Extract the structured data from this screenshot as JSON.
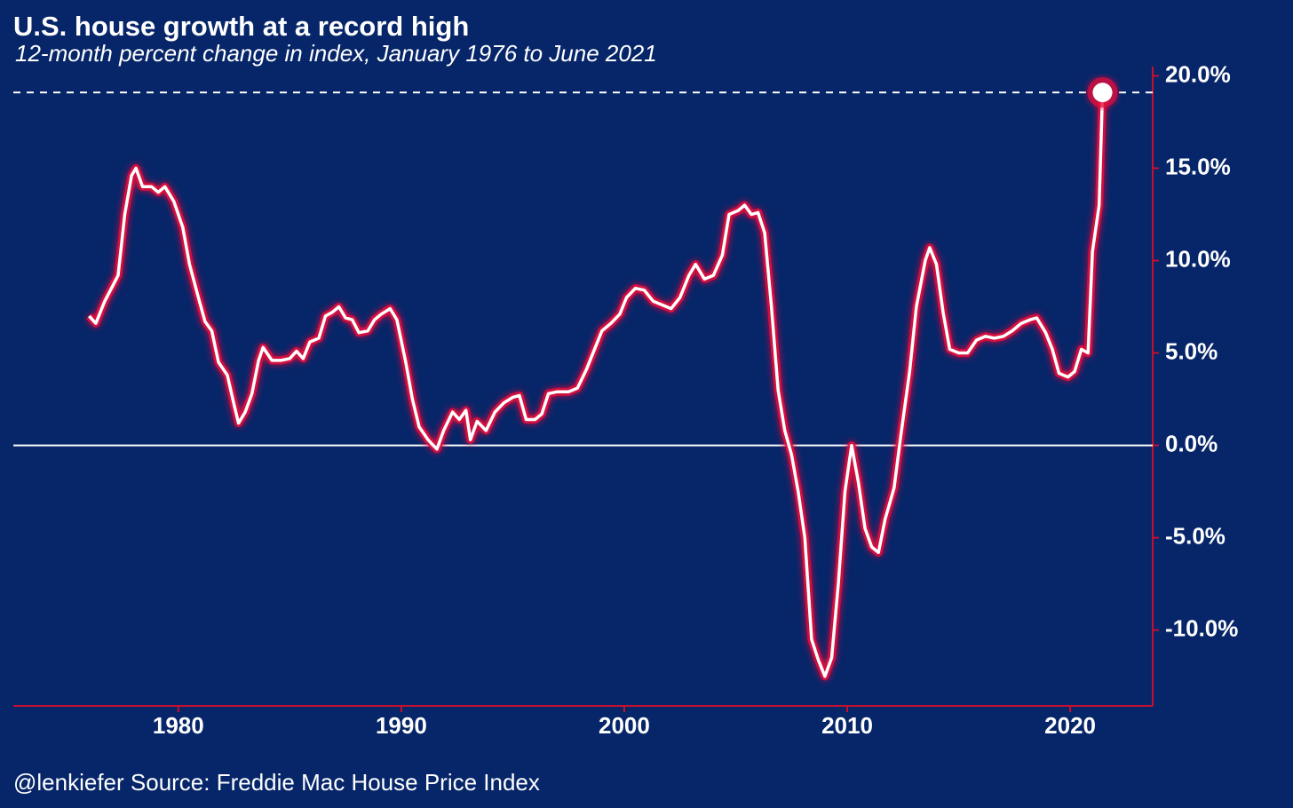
{
  "chart_data": {
    "type": "line",
    "title": "U.S. house growth at a record high",
    "subtitle": "12-month percent change in index, January 1976 to June 2021",
    "caption": "@lenkiefer Source: Freddie Mac House Price Index",
    "x": [
      1976.0,
      1976.3,
      1976.7,
      1977.0,
      1977.3,
      1977.6,
      1977.9,
      1978.1,
      1978.4,
      1978.8,
      1979.1,
      1979.4,
      1979.8,
      1980.2,
      1980.5,
      1980.9,
      1981.2,
      1981.5,
      1981.8,
      1982.2,
      1982.5,
      1982.7,
      1983.0,
      1983.3,
      1983.6,
      1983.8,
      1984.2,
      1984.6,
      1985.0,
      1985.3,
      1985.6,
      1985.9,
      1986.3,
      1986.6,
      1986.9,
      1987.2,
      1987.5,
      1987.8,
      1988.1,
      1988.5,
      1988.8,
      1989.1,
      1989.5,
      1989.8,
      1990.2,
      1990.5,
      1990.8,
      1991.2,
      1991.6,
      1991.9,
      1992.3,
      1992.6,
      1992.9,
      1993.1,
      1993.4,
      1993.8,
      1994.2,
      1994.6,
      1995.0,
      1995.3,
      1995.6,
      1996.0,
      1996.3,
      1996.6,
      1997.0,
      1997.5,
      1997.9,
      1998.3,
      1998.7,
      1999.0,
      1999.4,
      1999.8,
      2000.1,
      2000.5,
      2000.9,
      2001.3,
      2001.7,
      2002.1,
      2002.5,
      2002.9,
      2003.2,
      2003.6,
      2004.0,
      2004.4,
      2004.7,
      2005.1,
      2005.4,
      2005.7,
      2006.0,
      2006.3,
      2006.6,
      2006.9,
      2007.2,
      2007.5,
      2007.8,
      2008.1,
      2008.4,
      2008.7,
      2009.0,
      2009.3,
      2009.6,
      2009.9,
      2010.2,
      2010.5,
      2010.8,
      2011.1,
      2011.4,
      2011.7,
      2012.1,
      2012.4,
      2012.8,
      2013.1,
      2013.5,
      2013.7,
      2014.0,
      2014.3,
      2014.6,
      2015.0,
      2015.4,
      2015.8,
      2016.2,
      2016.6,
      2017.0,
      2017.4,
      2017.8,
      2018.2,
      2018.5,
      2018.9,
      2019.2,
      2019.5,
      2019.9,
      2020.2,
      2020.5,
      2020.8,
      2021.0,
      2021.3,
      2021.45
    ],
    "series": [
      {
        "color": "#ffffff",
        "values": [
          7.0,
          6.6,
          7.8,
          8.5,
          9.2,
          12.5,
          14.6,
          15.0,
          14.0,
          14.0,
          13.7,
          14.0,
          13.2,
          11.8,
          9.8,
          8.0,
          6.7,
          6.2,
          4.5,
          3.8,
          2.2,
          1.2,
          1.8,
          2.8,
          4.6,
          5.3,
          4.6,
          4.6,
          4.7,
          5.1,
          4.7,
          5.6,
          5.8,
          7.0,
          7.2,
          7.5,
          6.9,
          6.8,
          6.1,
          6.2,
          6.8,
          7.1,
          7.4,
          6.8,
          4.5,
          2.5,
          1.0,
          0.3,
          -0.2,
          0.8,
          1.8,
          1.4,
          1.9,
          0.3,
          1.3,
          0.8,
          1.8,
          2.3,
          2.6,
          2.7,
          1.4,
          1.4,
          1.7,
          2.8,
          2.9,
          2.9,
          3.1,
          4.1,
          5.3,
          6.2,
          6.6,
          7.1,
          8.0,
          8.5,
          8.4,
          7.8,
          7.6,
          7.4,
          8.0,
          9.2,
          9.8,
          9.0,
          9.2,
          10.3,
          12.5,
          12.7,
          13.0,
          12.5,
          12.6,
          11.5,
          7.5,
          3.0,
          0.8,
          -0.5,
          -2.5,
          -5.0,
          -10.5,
          -11.6,
          -12.5,
          -11.5,
          -7.5,
          -2.5,
          0.0,
          -2.0,
          -4.5,
          -5.5,
          -5.8,
          -4.0,
          -2.3,
          0.5,
          4.0,
          7.5,
          10.0,
          10.7,
          9.8,
          7.2,
          5.2,
          5.0,
          5.0,
          5.7,
          5.9,
          5.8,
          5.9,
          6.2,
          6.6,
          6.8,
          6.9,
          6.1,
          5.2,
          3.9,
          3.7,
          4.0,
          5.2,
          5.0,
          10.5,
          13.0,
          19.1
        ]
      }
    ],
    "glow_color": "#e8103a",
    "axis_color": "#c8102e",
    "xlim": [
      1972.6,
      2023.7
    ],
    "xticks": [
      1980,
      1990,
      2000,
      2010,
      2020
    ],
    "ylim": [
      -14.1,
      20.5
    ],
    "yticks": [
      {
        "value": -10,
        "label": "-10.0%"
      },
      {
        "value": -5,
        "label": "-5.0%"
      },
      {
        "value": 0,
        "label": "0.0%"
      },
      {
        "value": 5,
        "label": "5.0%"
      },
      {
        "value": 10,
        "label": "10.0%"
      },
      {
        "value": 15,
        "label": "15.0%"
      },
      {
        "value": 20,
        "label": "20.0%"
      }
    ]
  }
}
